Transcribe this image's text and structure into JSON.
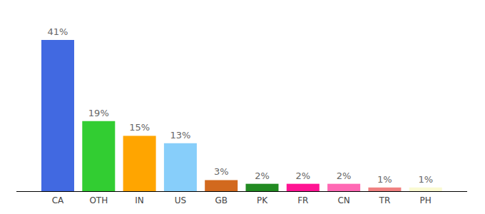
{
  "chart_data": {
    "type": "bar",
    "categories": [
      "CA",
      "OTH",
      "IN",
      "US",
      "GB",
      "PK",
      "FR",
      "CN",
      "TR",
      "PH"
    ],
    "values": [
      41,
      19,
      15,
      13,
      3,
      2,
      2,
      2,
      1,
      1
    ],
    "value_labels": [
      "41%",
      "19%",
      "15%",
      "13%",
      "3%",
      "2%",
      "2%",
      "2%",
      "1%",
      "1%"
    ],
    "colors": [
      "#4169e1",
      "#32cd32",
      "#ffa500",
      "#87cefa",
      "#d2691e",
      "#228b22",
      "#ff1493",
      "#ff69b4",
      "#f08080",
      "#fafad2"
    ],
    "ylim": [
      0,
      41
    ],
    "data_labels": true,
    "tick_labels": "x",
    "grid": false
  }
}
